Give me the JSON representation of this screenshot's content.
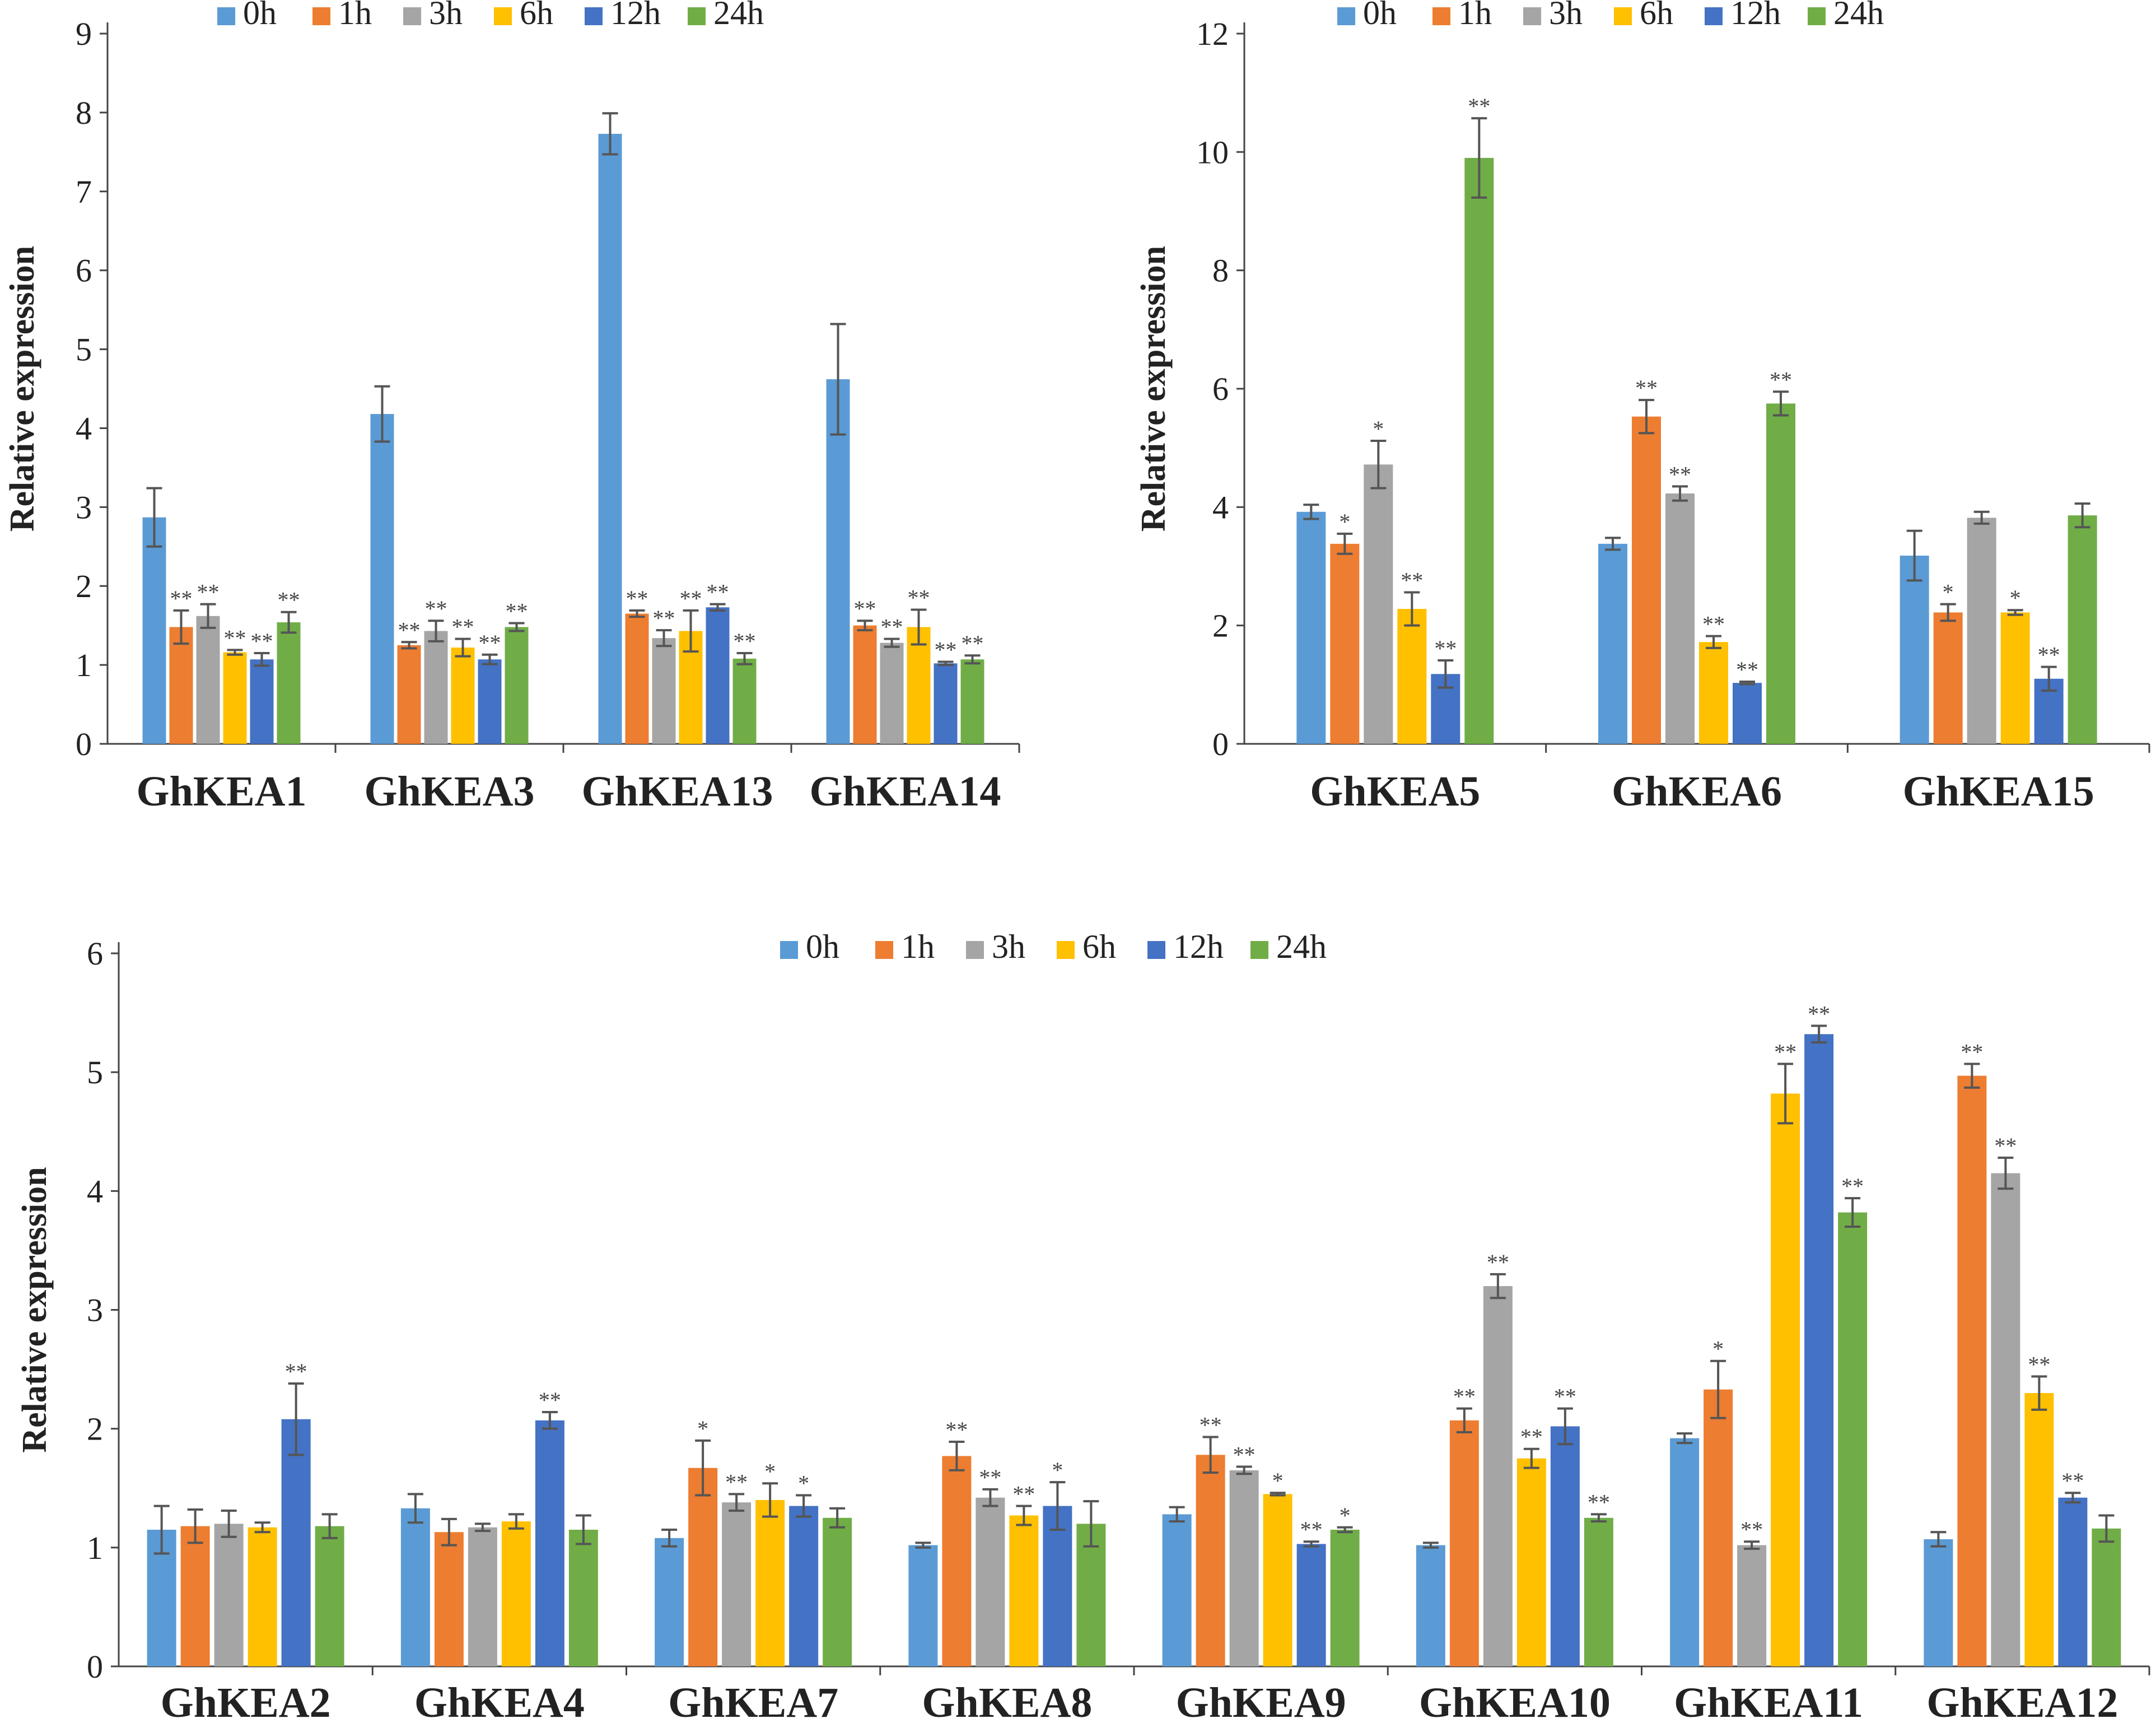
{
  "chart_data": [
    {
      "type": "bar",
      "title": "",
      "ylabel": "Relative expression",
      "xlabel": "",
      "ylim": [
        0,
        9
      ],
      "yticks": [
        0,
        1,
        2,
        3,
        4,
        5,
        6,
        7,
        8,
        9
      ],
      "legend_position": "top",
      "categories": [
        "GhKEA1",
        "GhKEA3",
        "GhKEA13",
        "GhKEA14"
      ],
      "series": [
        {
          "name": "0h",
          "color": "#5B9BD5",
          "values": [
            2.87,
            4.18,
            7.73,
            4.62
          ],
          "errors": [
            0.37,
            0.35,
            0.26,
            0.7
          ],
          "sig": [
            "",
            "",
            "",
            ""
          ]
        },
        {
          "name": "1h",
          "color": "#ED7D31",
          "values": [
            1.48,
            1.25,
            1.65,
            1.5
          ],
          "errors": [
            0.21,
            0.04,
            0.04,
            0.06
          ],
          "sig": [
            "**",
            "**",
            "**",
            "**"
          ]
        },
        {
          "name": "3h",
          "color": "#A5A5A5",
          "values": [
            1.62,
            1.43,
            1.34,
            1.28
          ],
          "errors": [
            0.15,
            0.13,
            0.1,
            0.05
          ],
          "sig": [
            "**",
            "**",
            "**",
            "**"
          ]
        },
        {
          "name": "6h",
          "color": "#FFC000",
          "values": [
            1.16,
            1.22,
            1.43,
            1.48
          ],
          "errors": [
            0.03,
            0.11,
            0.26,
            0.22
          ],
          "sig": [
            "**",
            "**",
            "**",
            "**"
          ]
        },
        {
          "name": "12h",
          "color": "#4472C4",
          "values": [
            1.07,
            1.07,
            1.73,
            1.02
          ],
          "errors": [
            0.08,
            0.06,
            0.04,
            0.02
          ],
          "sig": [
            "**",
            "**",
            "**",
            "**"
          ]
        },
        {
          "name": "24h",
          "color": "#70AD47",
          "values": [
            1.54,
            1.48,
            1.08,
            1.07
          ],
          "errors": [
            0.13,
            0.05,
            0.07,
            0.05
          ],
          "sig": [
            "**",
            "**",
            "**",
            "**"
          ]
        }
      ]
    },
    {
      "type": "bar",
      "title": "",
      "ylabel": "Relative expression",
      "xlabel": "",
      "ylim": [
        0,
        12
      ],
      "yticks": [
        0,
        2,
        4,
        6,
        8,
        10,
        12
      ],
      "legend_position": "top",
      "categories": [
        "GhKEA5",
        "GhKEA6",
        "GhKEA15"
      ],
      "series": [
        {
          "name": "0h",
          "color": "#5B9BD5",
          "values": [
            3.92,
            3.38,
            3.18
          ],
          "errors": [
            0.12,
            0.1,
            0.42
          ],
          "sig": [
            "",
            "",
            ""
          ]
        },
        {
          "name": "1h",
          "color": "#ED7D31",
          "values": [
            3.38,
            5.53,
            2.22
          ],
          "errors": [
            0.17,
            0.28,
            0.14
          ],
          "sig": [
            "*",
            "**",
            "*"
          ]
        },
        {
          "name": "3h",
          "color": "#A5A5A5",
          "values": [
            4.72,
            4.23,
            3.82
          ],
          "errors": [
            0.4,
            0.12,
            0.1
          ],
          "sig": [
            "*",
            "**",
            ""
          ]
        },
        {
          "name": "6h",
          "color": "#FFC000",
          "values": [
            2.28,
            1.72,
            2.22
          ],
          "errors": [
            0.28,
            0.1,
            0.04
          ],
          "sig": [
            "**",
            "**",
            "*"
          ]
        },
        {
          "name": "12h",
          "color": "#4472C4",
          "values": [
            1.18,
            1.03,
            1.1
          ],
          "errors": [
            0.23,
            0.02,
            0.2
          ],
          "sig": [
            "**",
            "**",
            "**"
          ]
        },
        {
          "name": "24h",
          "color": "#70AD47",
          "values": [
            9.9,
            5.75,
            3.86
          ],
          "errors": [
            0.67,
            0.2,
            0.2
          ],
          "sig": [
            "**",
            "**",
            ""
          ]
        }
      ]
    },
    {
      "type": "bar",
      "title": "",
      "ylabel": "Relative expression",
      "xlabel": "",
      "ylim": [
        0,
        6
      ],
      "yticks": [
        0,
        1,
        2,
        3,
        4,
        5,
        6
      ],
      "legend_position": "top",
      "categories": [
        "GhKEA2",
        "GhKEA4",
        "GhKEA7",
        "GhKEA8",
        "GhKEA9",
        "GhKEA10",
        "GhKEA11",
        "GhKEA12"
      ],
      "series": [
        {
          "name": "0h",
          "color": "#5B9BD5",
          "values": [
            1.15,
            1.33,
            1.08,
            1.02,
            1.28,
            1.02,
            1.92,
            1.07
          ],
          "errors": [
            0.2,
            0.12,
            0.07,
            0.02,
            0.06,
            0.02,
            0.04,
            0.06
          ],
          "sig": [
            "",
            "",
            "",
            "",
            "",
            "",
            "",
            ""
          ]
        },
        {
          "name": "1h",
          "color": "#ED7D31",
          "values": [
            1.18,
            1.13,
            1.67,
            1.77,
            1.78,
            2.07,
            2.33,
            4.97
          ],
          "errors": [
            0.14,
            0.11,
            0.23,
            0.12,
            0.15,
            0.1,
            0.24,
            0.1
          ],
          "sig": [
            "",
            "",
            "*",
            "**",
            "**",
            "**",
            "*",
            "**"
          ]
        },
        {
          "name": "3h",
          "color": "#A5A5A5",
          "values": [
            1.2,
            1.17,
            1.38,
            1.42,
            1.65,
            3.2,
            1.02,
            4.15
          ],
          "errors": [
            0.11,
            0.03,
            0.07,
            0.07,
            0.03,
            0.1,
            0.03,
            0.13
          ],
          "sig": [
            "",
            "",
            "**",
            "**",
            "**",
            "**",
            "**",
            "**"
          ]
        },
        {
          "name": "6h",
          "color": "#FFC000",
          "values": [
            1.17,
            1.22,
            1.4,
            1.27,
            1.45,
            1.75,
            4.82,
            2.3
          ],
          "errors": [
            0.04,
            0.06,
            0.14,
            0.08,
            0.01,
            0.08,
            0.25,
            0.14
          ],
          "sig": [
            "",
            "",
            "*",
            "**",
            "*",
            "**",
            "**",
            "**"
          ]
        },
        {
          "name": "12h",
          "color": "#4472C4",
          "values": [
            2.08,
            2.07,
            1.35,
            1.35,
            1.03,
            2.02,
            5.32,
            1.42
          ],
          "errors": [
            0.3,
            0.07,
            0.09,
            0.2,
            0.02,
            0.15,
            0.07,
            0.04
          ],
          "sig": [
            "**",
            "**",
            "*",
            "*",
            "**",
            "**",
            "**",
            "**"
          ]
        },
        {
          "name": "24h",
          "color": "#70AD47",
          "values": [
            1.18,
            1.15,
            1.25,
            1.2,
            1.15,
            1.25,
            3.82,
            1.16
          ],
          "errors": [
            0.1,
            0.12,
            0.08,
            0.19,
            0.02,
            0.03,
            0.12,
            0.11
          ],
          "sig": [
            "",
            "",
            "",
            "",
            "*",
            "**",
            "**",
            ""
          ]
        }
      ]
    }
  ]
}
